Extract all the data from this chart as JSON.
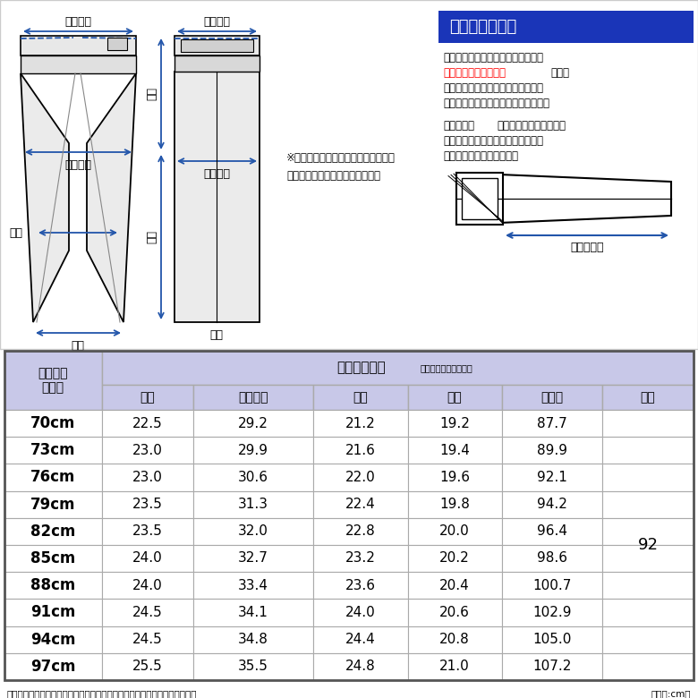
{
  "title_box": "お直しについて",
  "info_line1": "パンツの股下は補正前のサイズで、",
  "info_line2_red": "着用には裾上げが必要",
  "info_line2_black": "です。",
  "info_line3": "（当店で有料にて承っております）",
  "info_line4": "股下サイズを計測しご注文ください。",
  "measure_bold": "計測方法：",
  "measure_text1": "内股付け根の縬製が十字",
  "measure_text2": "に交わった部分から縬い目に沿って",
  "measure_text3": "裾口までメジャーで計測。",
  "inseam_label": "股下サイズ",
  "note_text": "※股下は股の中央の十字の縬い目から\n縬い目に沿って裾までの長さです",
  "waist_label": "ウエスト",
  "thigh_label": "ワタリ幅",
  "knee_label": "膝幅",
  "hem_label": "裾幅",
  "rise_label": "股上",
  "inseam_label2": "股下",
  "col_headers": [
    "股上",
    "ワタリ幅",
    "膝幅",
    "裾幅",
    "ヒップ",
    "股下"
  ],
  "waist_sizes": [
    "70cm",
    "73cm",
    "76cm",
    "79cm",
    "82cm",
    "85cm",
    "88cm",
    "91cm",
    "94cm",
    "97cm"
  ],
  "table_data": [
    [
      "22.5",
      "29.2",
      "21.2",
      "19.2",
      "87.7"
    ],
    [
      "23.0",
      "29.9",
      "21.6",
      "19.4",
      "89.9"
    ],
    [
      "23.0",
      "30.6",
      "22.0",
      "19.6",
      "92.1"
    ],
    [
      "23.5",
      "31.3",
      "22.4",
      "19.8",
      "94.2"
    ],
    [
      "23.5",
      "32.0",
      "22.8",
      "20.0",
      "96.4"
    ],
    [
      "24.0",
      "32.7",
      "23.2",
      "20.2",
      "98.6"
    ],
    [
      "24.0",
      "33.4",
      "23.6",
      "20.4",
      "100.7"
    ],
    [
      "24.5",
      "34.1",
      "24.0",
      "20.6",
      "102.9"
    ],
    [
      "24.5",
      "34.8",
      "24.4",
      "20.8",
      "105.0"
    ],
    [
      "25.5",
      "35.5",
      "24.8",
      "21.0",
      "107.2"
    ]
  ],
  "inseam_value": "92",
  "footer_left": "サイズは裁断明細書の数値です。若干の誤差が出ますのでご了承ください。",
  "footer_right": "（単位:cm）",
  "blue_header_color": "#1a35b8",
  "table_header_color": "#c8c8e8",
  "border_color": "#aaaaaa",
  "arrow_color": "#2255aa"
}
